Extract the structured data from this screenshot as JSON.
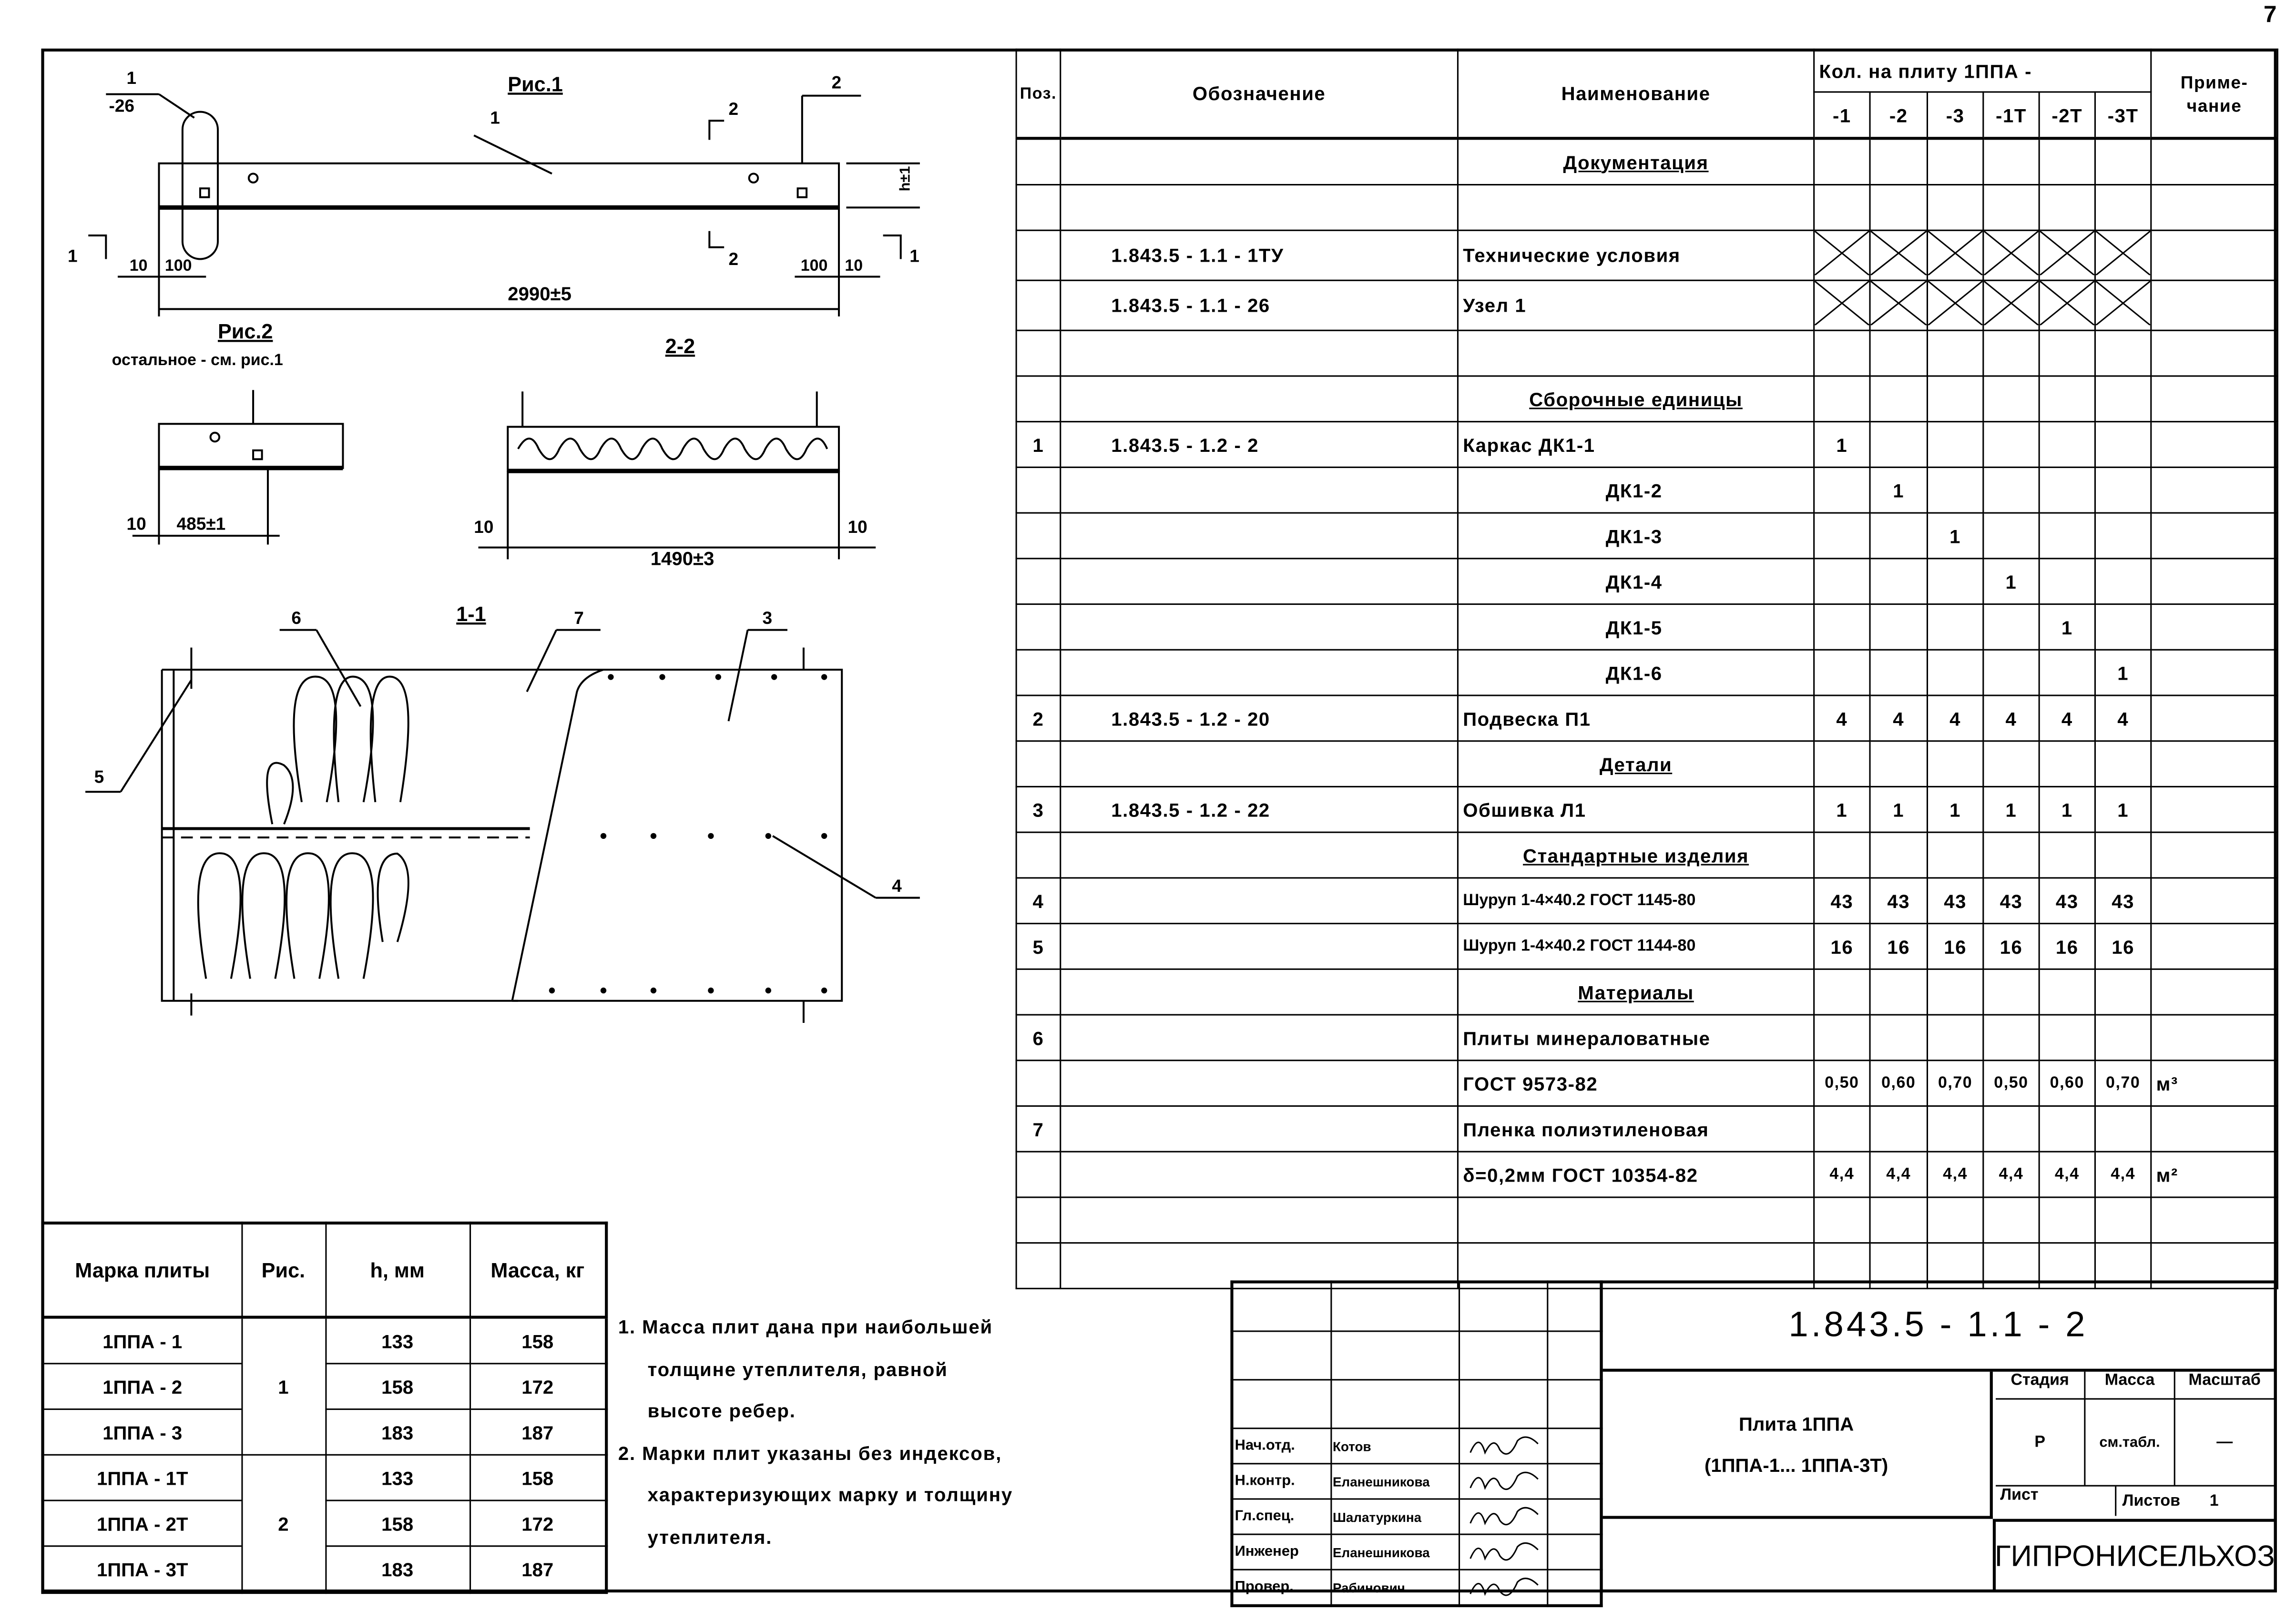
{
  "page_number": "7",
  "drawing": {
    "fig1_title": "Рис.1",
    "fig2_title": "Рис.2",
    "fig2_note": "остальное - см. рис.1",
    "section_22": "2-2",
    "section_11": "1-1",
    "callout_1": "1",
    "callout_1_ref": "-26",
    "callout_2": "2",
    "callout_3": "3",
    "callout_4": "4",
    "callout_5": "5",
    "callout_6": "6",
    "callout_7": "7",
    "cut_1": "1",
    "cut_2": "2",
    "dim_10": "10",
    "dim_100": "100",
    "dim_length": "2990±5",
    "dim_h": "h±1",
    "dim_485": "485±1",
    "dim_1490": "1490±3"
  },
  "spec": {
    "headers": {
      "pos": "Поз.",
      "designation": "Обозначение",
      "name": "Наименование",
      "qty": "Кол. на плиту 1ППА -",
      "note": "Приме-чание",
      "cols": [
        "-1",
        "-2",
        "-3",
        "-1Т",
        "-2Т",
        "-3Т"
      ]
    },
    "rows": [
      {
        "heading": "Документация"
      },
      {},
      {
        "des": "1.843.5 - 1.1 - 1ТУ",
        "name": "Технические условия",
        "cross": true
      },
      {
        "des": "1.843.5 - 1.1 - 26",
        "name": "Узел 1",
        "cross": true
      },
      {},
      {
        "heading": "Сборочные единицы"
      },
      {
        "pos": "1",
        "des": "1.843.5 - 1.2 - 2",
        "name": "Каркас  ДК1-1",
        "q": [
          "1",
          "",
          "",
          "",
          "",
          ""
        ]
      },
      {
        "name": "ДК1-2",
        "indent": true,
        "q": [
          "",
          "1",
          "",
          "",
          "",
          ""
        ]
      },
      {
        "name": "ДК1-3",
        "indent": true,
        "q": [
          "",
          "",
          "1",
          "",
          "",
          ""
        ]
      },
      {
        "name": "ДК1-4",
        "indent": true,
        "q": [
          "",
          "",
          "",
          "1",
          "",
          ""
        ]
      },
      {
        "name": "ДК1-5",
        "indent": true,
        "q": [
          "",
          "",
          "",
          "",
          "1",
          ""
        ]
      },
      {
        "name": "ДК1-6",
        "indent": true,
        "q": [
          "",
          "",
          "",
          "",
          "",
          "1"
        ]
      },
      {
        "pos": "2",
        "des": "1.843.5 - 1.2 - 20",
        "name": "Подвеска  П1",
        "q": [
          "4",
          "4",
          "4",
          "4",
          "4",
          "4"
        ]
      },
      {
        "heading": "Детали"
      },
      {
        "pos": "3",
        "des": "1.843.5 - 1.2 - 22",
        "name": "Обшивка  Л1",
        "q": [
          "1",
          "1",
          "1",
          "1",
          "1",
          "1"
        ]
      },
      {
        "heading": "Стандартные изделия"
      },
      {
        "pos": "4",
        "name": "Шуруп 1-4×40.2 ГОСТ 1145-80",
        "q": [
          "43",
          "43",
          "43",
          "43",
          "43",
          "43"
        ]
      },
      {
        "pos": "5",
        "name": "Шуруп 1-4×40.2 ГОСТ 1144-80",
        "q": [
          "16",
          "16",
          "16",
          "16",
          "16",
          "16"
        ]
      },
      {
        "heading": "Материалы"
      },
      {
        "pos": "6",
        "name": "Плиты минераловатные"
      },
      {
        "name": "ГОСТ 9573-82",
        "q": [
          "0,50",
          "0,60",
          "0,70",
          "0,50",
          "0,60",
          "0,70"
        ],
        "note": "м³"
      },
      {
        "pos": "7",
        "name": "Пленка полиэтиленовая"
      },
      {
        "name": "δ=0,2мм  ГОСТ 10354-82",
        "q": [
          "4,4",
          "4,4",
          "4,4",
          "4,4",
          "4,4",
          "4,4"
        ],
        "note": "м²"
      },
      {},
      {}
    ]
  },
  "mass_table": {
    "headers": [
      "Марка плиты",
      "Рис.",
      "h, мм",
      "Масса, кг"
    ],
    "rows": [
      {
        "mark": "1ППА - 1",
        "fig": "1",
        "h": "133",
        "mass": "158"
      },
      {
        "mark": "1ППА - 2",
        "fig": "",
        "h": "158",
        "mass": "172"
      },
      {
        "mark": "1ППА - 3",
        "fig": "",
        "h": "183",
        "mass": "187"
      },
      {
        "mark": "1ППА - 1Т",
        "fig": "2",
        "h": "133",
        "mass": "158"
      },
      {
        "mark": "1ППА - 2Т",
        "fig": "",
        "h": "158",
        "mass": "172"
      },
      {
        "mark": "1ППА - 3Т",
        "fig": "",
        "h": "183",
        "mass": "187"
      }
    ]
  },
  "notes": [
    "1. Масса плит дана при наибольшей",
    "толщине утеплителя, равной",
    "высоте ребер.",
    "2. Марки плит указаны без индексов,",
    "характеризующих марку и толщину",
    "утеплителя."
  ],
  "title_block": {
    "code": "1.843.5 - 1.1 - 2",
    "title_line1": "Плита  1ППА",
    "title_line2": "(1ППА-1...  1ППА-3Т)",
    "stage_label": "Стадия",
    "mass_label": "Масса",
    "scale_label": "Масштаб",
    "stage": "Р",
    "mass": "см.табл.",
    "scale": "—",
    "sheet_label": "Лист",
    "sheets_label": "Листов",
    "sheets": "1",
    "org": "ГИПРОНИСЕЛЬХОЗ",
    "signers": [
      {
        "role": "Нач.отд.",
        "name": "Котов"
      },
      {
        "role": "Н.контр.",
        "name": "Еланешникова"
      },
      {
        "role": "Гл.спец.",
        "name": "Шалатуркина"
      },
      {
        "role": "Инженер",
        "name": "Еланешникова"
      },
      {
        "role": "Провер.",
        "name": "Рабинович"
      }
    ]
  }
}
